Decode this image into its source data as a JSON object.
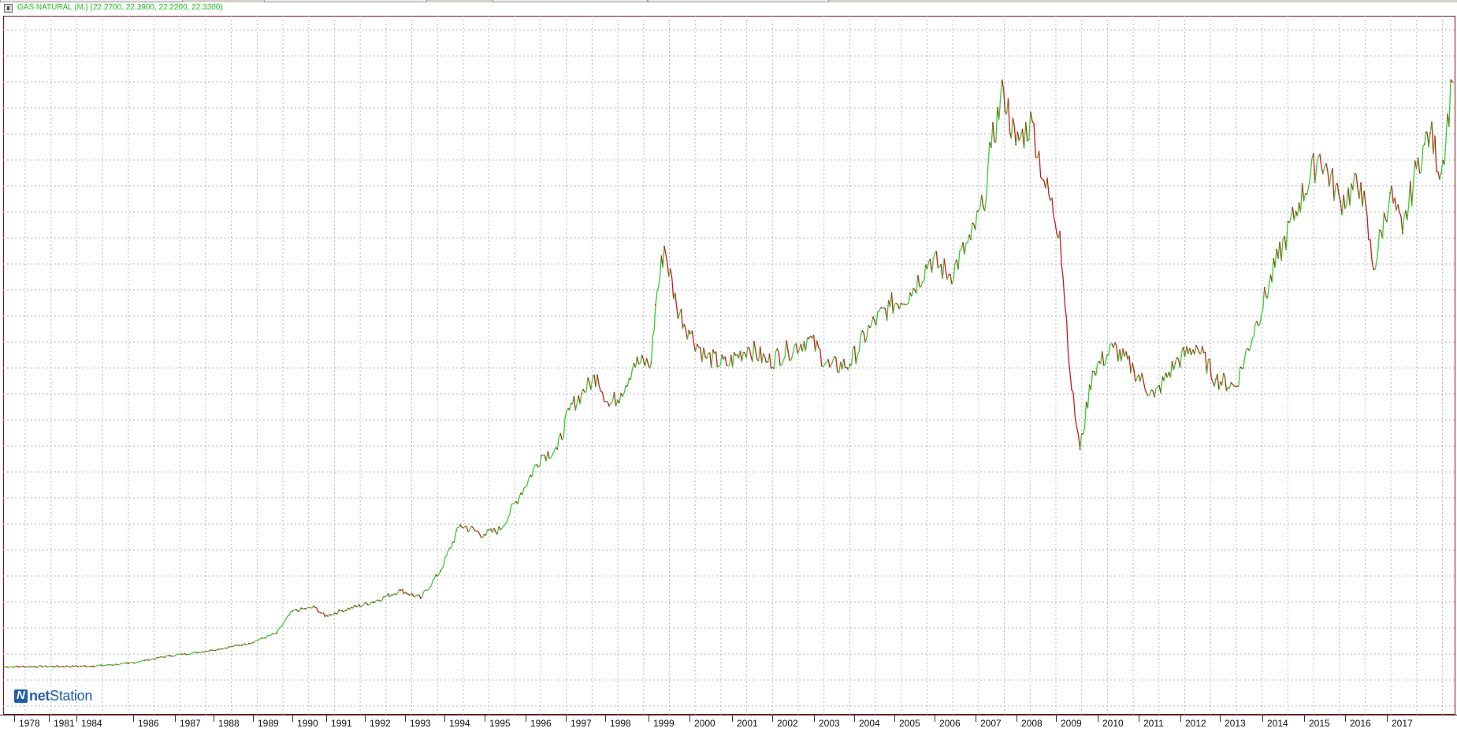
{
  "window": {
    "title": "GAS NATURAL (M.) (22.2700, 22.3900, 22.2200, 22.3300)",
    "icon": "chart-window-icon"
  },
  "logo": {
    "brand_bold": "net",
    "brand_rest": "Station"
  },
  "colors": {
    "up": "#2ed12e",
    "down": "#c8191c",
    "grid": "#b9b9b9",
    "frame": "#8a1010",
    "title": "#19c419"
  },
  "chart_data": {
    "type": "line",
    "title": "GAS NATURAL (M.) (22.2700, 22.3900, 22.2200, 22.3300)",
    "xlabel": "",
    "ylabel": "",
    "grid": true,
    "y_axis_labels": "none",
    "x_tick_labels": [
      "1978",
      "1981",
      "1984",
      "1986",
      "1987",
      "1988",
      "1989",
      "1990",
      "1991",
      "1992",
      "1993",
      "1994",
      "1995",
      "1996",
      "1997",
      "1998",
      "1999",
      "2000",
      "2001",
      "2002",
      "2003",
      "2004",
      "2005",
      "2006",
      "2007",
      "2008",
      "2009",
      "2010",
      "2011",
      "2012",
      "2013",
      "2014",
      "2015",
      "2016",
      "2017"
    ],
    "ylim": [
      0,
      100
    ],
    "series": [
      {
        "values": [
          [
            1976.5,
            0.7
          ],
          [
            1984.5,
            0.8
          ],
          [
            1985.5,
            1.2
          ],
          [
            1986.5,
            2.4
          ],
          [
            1987.5,
            3.2
          ],
          [
            1988.5,
            4.3
          ],
          [
            1989.2,
            5.9
          ],
          [
            1989.6,
            9.3
          ],
          [
            1990.2,
            9.9
          ],
          [
            1990.5,
            8.5
          ],
          [
            1991.0,
            9.4
          ],
          [
            1991.8,
            10.7
          ],
          [
            1992.5,
            12.5
          ],
          [
            1993.0,
            11.3
          ],
          [
            1993.5,
            15.5
          ],
          [
            1994.0,
            22.6
          ],
          [
            1994.6,
            21.1
          ],
          [
            1995.0,
            21.9
          ],
          [
            1995.5,
            27.5
          ],
          [
            1996.0,
            33.3
          ],
          [
            1996.4,
            34.3
          ],
          [
            1996.7,
            40.4
          ],
          [
            1997.0,
            42.9
          ],
          [
            1997.4,
            45.7
          ],
          [
            1997.7,
            41.0
          ],
          [
            1998.0,
            42.9
          ],
          [
            1998.3,
            47.5
          ],
          [
            1998.7,
            47.6
          ],
          [
            1998.8,
            56.6
          ],
          [
            1999.0,
            65.6
          ],
          [
            1999.3,
            56.4
          ],
          [
            1999.6,
            52.6
          ],
          [
            2000.0,
            48.6
          ],
          [
            2000.5,
            47.3
          ],
          [
            2001.0,
            50.0
          ],
          [
            2001.5,
            47.8
          ],
          [
            2002.0,
            49.5
          ],
          [
            2002.5,
            51.4
          ],
          [
            2003.0,
            47.0
          ],
          [
            2003.5,
            47.4
          ],
          [
            2004.0,
            53.1
          ],
          [
            2004.5,
            56.4
          ],
          [
            2005.0,
            58.4
          ],
          [
            2005.5,
            63.6
          ],
          [
            2006.0,
            61.2
          ],
          [
            2006.5,
            66.7
          ],
          [
            2006.8,
            71.8
          ],
          [
            2007.0,
            80.9
          ],
          [
            2007.3,
            89.9
          ],
          [
            2007.6,
            81.3
          ],
          [
            2008.0,
            84.9
          ],
          [
            2008.3,
            75.7
          ],
          [
            2008.7,
            67.9
          ],
          [
            2009.0,
            43.5
          ],
          [
            2009.2,
            34.3
          ],
          [
            2009.5,
            46.3
          ],
          [
            2010.0,
            50.0
          ],
          [
            2010.5,
            46.5
          ],
          [
            2011.0,
            42.4
          ],
          [
            2011.5,
            47.6
          ],
          [
            2012.0,
            50.3
          ],
          [
            2012.5,
            45.1
          ],
          [
            2013.0,
            44.0
          ],
          [
            2013.5,
            54.0
          ],
          [
            2014.0,
            63.8
          ],
          [
            2014.5,
            72.3
          ],
          [
            2015.0,
            79.8
          ],
          [
            2015.5,
            72.6
          ],
          [
            2016.0,
            75.4
          ],
          [
            2016.3,
            62.1
          ],
          [
            2016.7,
            73.9
          ],
          [
            2017.0,
            67.6
          ],
          [
            2017.5,
            77.7
          ],
          [
            2017.8,
            81.4
          ],
          [
            2018.0,
            83.1
          ],
          [
            2018.4,
            76.9
          ],
          [
            2018.8,
            91.0
          ]
        ]
      }
    ]
  }
}
